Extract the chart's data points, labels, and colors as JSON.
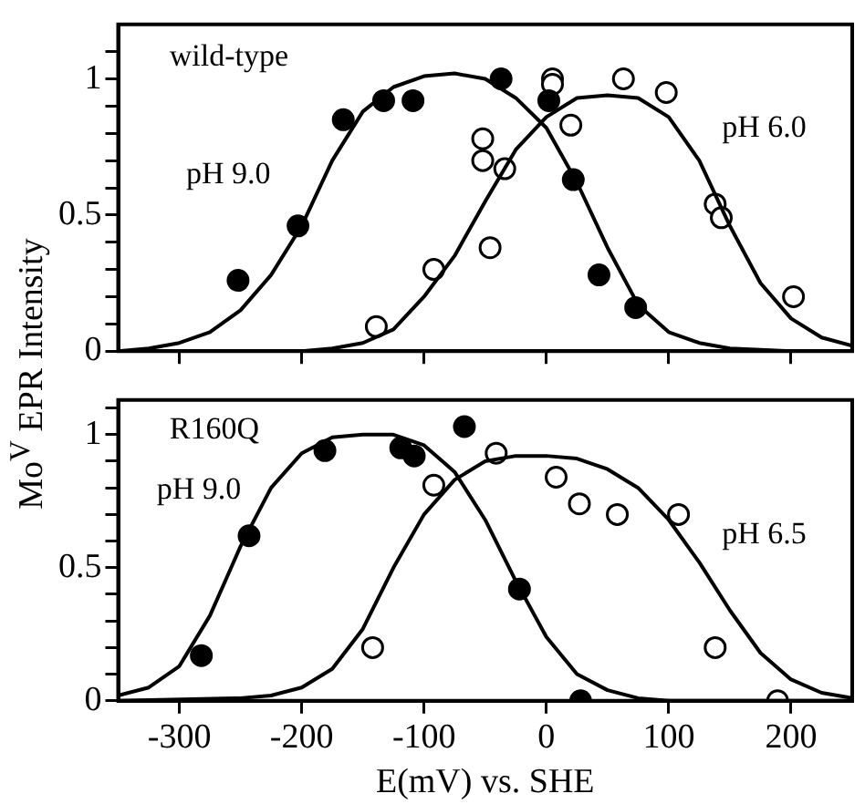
{
  "chart_data": [
    {
      "type": "scatter",
      "ylabel": "Mo$^{V}$ EPR Intensity",
      "annotations": [
        "wild-type",
        "pH 9.0",
        "pH 6.0"
      ],
      "xlim": [
        -350,
        250
      ],
      "xticks": [
        {
          "value": -300,
          "label": null
        },
        {
          "value": -200,
          "label": null
        },
        {
          "value": -100,
          "label": null
        },
        {
          "value": 0,
          "label": null
        },
        {
          "value": 100,
          "label": null
        },
        {
          "value": 200,
          "label": null
        }
      ],
      "ylim": [
        0,
        1.2
      ],
      "yticks": [
        0,
        {
          "value": 0.1,
          "label": null
        },
        {
          "value": 0.2,
          "label": null
        },
        {
          "value": 0.3,
          "label": null
        },
        {
          "value": 0.4,
          "label": null
        },
        0.5,
        {
          "value": 0.6,
          "label": null
        },
        {
          "value": 0.7,
          "label": null
        },
        {
          "value": 0.8,
          "label": null
        },
        {
          "value": 0.9,
          "label": null
        },
        1,
        {
          "value": 1.1,
          "label": null
        }
      ],
      "tick_labels": "y",
      "grid": false,
      "legend": false,
      "marker": "circle",
      "series": [
        {
          "type": "line",
          "color": "#000000",
          "marker": "none",
          "x": [
            -350,
            -325,
            -300,
            -275,
            -250,
            -225,
            -200,
            -175,
            -150,
            -125,
            -100,
            -75,
            -50,
            -25,
            0,
            25,
            50,
            75,
            100,
            125,
            150,
            200,
            250
          ],
          "values": [
            0.0,
            0.01,
            0.03,
            0.07,
            0.15,
            0.28,
            0.46,
            0.7,
            0.88,
            0.97,
            1.01,
            1.02,
            1.0,
            0.93,
            0.82,
            0.62,
            0.38,
            0.17,
            0.07,
            0.03,
            0.01,
            0.0,
            0.0
          ]
        },
        {
          "type": "line",
          "color": "#000000",
          "marker": "none",
          "x": [
            -350,
            -200,
            -175,
            -150,
            -125,
            -100,
            -75,
            -50,
            -25,
            0,
            25,
            50,
            75,
            100,
            125,
            150,
            175,
            200,
            225,
            250
          ],
          "values": [
            0.0,
            0.0,
            0.01,
            0.03,
            0.08,
            0.2,
            0.35,
            0.55,
            0.74,
            0.86,
            0.93,
            0.94,
            0.93,
            0.86,
            0.7,
            0.46,
            0.25,
            0.12,
            0.05,
            0.02
          ]
        },
        {
          "color": "#000000",
          "x": [
            -252,
            -203,
            -166,
            -133,
            -109,
            -37,
            2,
            22,
            43,
            73
          ],
          "values": [
            0.26,
            0.46,
            0.85,
            0.92,
            0.92,
            1.0,
            0.92,
            0.63,
            0.28,
            0.16
          ]
        },
        {
          "color": "#000000",
          "x": [
            -139,
            -92,
            -52,
            -52,
            -46,
            -34,
            5,
            5,
            20,
            63,
            98,
            138,
            143,
            202
          ],
          "values": [
            0.09,
            0.3,
            0.78,
            0.7,
            0.38,
            0.67,
            1.0,
            0.98,
            0.83,
            1.0,
            0.95,
            0.54,
            0.49,
            0.2
          ]
        }
      ]
    },
    {
      "type": "scatter",
      "xlabel": "E(mV) vs. SHE",
      "annotations": [
        "R160Q",
        "pH 9.0",
        "pH 6.5"
      ],
      "xlim": [
        -350,
        250
      ],
      "xticks": [
        -300,
        -200,
        -100,
        0,
        100,
        200
      ],
      "ylim": [
        0,
        1.13
      ],
      "yticks": [
        0,
        {
          "value": 0.1,
          "label": null
        },
        {
          "value": 0.2,
          "label": null
        },
        {
          "value": 0.3,
          "label": null
        },
        {
          "value": 0.4,
          "label": null
        },
        0.5,
        {
          "value": 0.6,
          "label": null
        },
        {
          "value": 0.7,
          "label": null
        },
        {
          "value": 0.8,
          "label": null
        },
        {
          "value": 0.9,
          "label": null
        },
        1,
        {
          "value": 1.1,
          "label": null
        }
      ],
      "grid": false,
      "legend": false,
      "marker": "circle",
      "series": [
        {
          "type": "line",
          "color": "#000000",
          "marker": "none",
          "x": [
            -350,
            -325,
            -300,
            -275,
            -250,
            -225,
            -200,
            -175,
            -150,
            -125,
            -100,
            -75,
            -50,
            -25,
            0,
            25,
            50,
            75,
            100,
            150,
            250
          ],
          "values": [
            0.02,
            0.05,
            0.13,
            0.32,
            0.58,
            0.8,
            0.93,
            0.99,
            1.0,
            1.0,
            0.96,
            0.86,
            0.68,
            0.45,
            0.24,
            0.1,
            0.04,
            0.01,
            0.0,
            0.0,
            0.0
          ]
        },
        {
          "type": "line",
          "color": "#000000",
          "marker": "none",
          "x": [
            -350,
            -250,
            -225,
            -200,
            -175,
            -150,
            -125,
            -100,
            -75,
            -50,
            -25,
            0,
            25,
            50,
            75,
            100,
            125,
            150,
            175,
            200,
            225,
            250
          ],
          "values": [
            0.0,
            0.01,
            0.02,
            0.05,
            0.12,
            0.27,
            0.5,
            0.7,
            0.83,
            0.9,
            0.92,
            0.92,
            0.91,
            0.87,
            0.8,
            0.68,
            0.52,
            0.34,
            0.18,
            0.08,
            0.03,
            0.01
          ]
        },
        {
          "color": "#000000",
          "x": [
            -282,
            -243,
            -181,
            -119,
            -108,
            -67,
            -22,
            28
          ],
          "values": [
            0.17,
            0.62,
            0.94,
            0.95,
            0.92,
            1.03,
            0.42,
            0.0
          ]
        },
        {
          "color": "#000000",
          "x": [
            -142,
            -92,
            -41,
            8,
            27,
            58,
            108,
            138,
            189
          ],
          "values": [
            0.2,
            0.81,
            0.93,
            0.84,
            0.74,
            0.7,
            0.7,
            0.2,
            0.0
          ]
        }
      ]
    }
  ]
}
